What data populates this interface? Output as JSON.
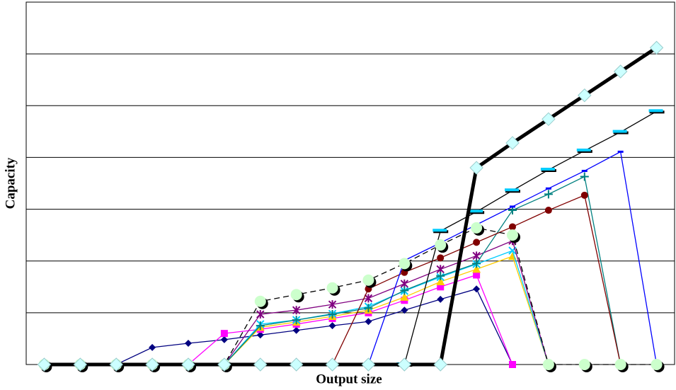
{
  "chart_data": {
    "type": "line",
    "x_label": "Output size",
    "y_label": "Capacity",
    "x": [
      1,
      2,
      3,
      4,
      5,
      6,
      7,
      8,
      9,
      10,
      11,
      12,
      13,
      14,
      15,
      16,
      17,
      18
    ],
    "xlim": [
      0.5,
      18.5
    ],
    "ylim": [
      0,
      7
    ],
    "yticks": [
      0,
      1,
      2,
      3,
      4,
      5,
      6,
      7
    ],
    "grid": true,
    "series": [
      {
        "color": "#000080",
        "marker": "diamond",
        "values": [
          null,
          null,
          0,
          0.33,
          0.41,
          0.48,
          0.57,
          0.66,
          0.75,
          0.83,
          1.05,
          1.26,
          1.46,
          0,
          null,
          null,
          null,
          null
        ]
      },
      {
        "color": "#ff00ff",
        "marker": "square",
        "values": [
          null,
          null,
          null,
          null,
          0,
          0.6,
          0.68,
          0.78,
          0.89,
          1.0,
          1.24,
          1.5,
          1.73,
          0,
          null,
          null,
          null,
          null
        ]
      },
      {
        "color": "#ffcc00",
        "marker": "triangle",
        "values": [
          null,
          null,
          null,
          null,
          null,
          0,
          0.72,
          0.82,
          0.93,
          1.05,
          1.3,
          1.6,
          1.84,
          2.09,
          0,
          null,
          null,
          null
        ]
      },
      {
        "color": "#00ccff",
        "marker": "x",
        "values": [
          null,
          null,
          null,
          null,
          null,
          0,
          0.78,
          0.86,
          0.98,
          1.12,
          1.42,
          1.69,
          1.94,
          2.2,
          0,
          null,
          null,
          null
        ]
      },
      {
        "color": "#800080",
        "marker": "star",
        "values": [
          null,
          null,
          null,
          null,
          null,
          0,
          0.97,
          1.05,
          1.16,
          1.28,
          1.56,
          1.84,
          2.1,
          2.39,
          0,
          null,
          null,
          null
        ]
      },
      {
        "color": "#008080",
        "marker": "plus",
        "values": [
          null,
          null,
          null,
          null,
          null,
          0,
          0.75,
          0.86,
          0.97,
          1.09,
          1.43,
          1.71,
          1.95,
          2.98,
          3.29,
          3.63,
          0,
          null
        ]
      },
      {
        "color": "#800000",
        "marker": "circle",
        "values": [
          null,
          null,
          null,
          null,
          null,
          null,
          null,
          null,
          0,
          1.46,
          1.78,
          2.06,
          2.36,
          2.66,
          2.98,
          3.27,
          0,
          null
        ]
      },
      {
        "color": "#0000ff",
        "marker": "dash",
        "values": [
          null,
          null,
          null,
          null,
          null,
          null,
          null,
          null,
          null,
          0,
          2.01,
          2.35,
          2.7,
          3.05,
          3.4,
          3.74,
          4.11,
          0
        ]
      },
      {
        "color": "#000000",
        "marker": "bar",
        "values": [
          null,
          null,
          null,
          null,
          null,
          null,
          null,
          null,
          null,
          null,
          0,
          2.58,
          2.95,
          3.36,
          3.76,
          4.13,
          4.49,
          4.89
        ]
      },
      {
        "color": "#000000",
        "marker": "bigcircle",
        "dash": "8,5",
        "values": [
          0,
          0,
          0,
          0,
          0,
          0,
          1.22,
          1.35,
          1.48,
          1.63,
          1.95,
          2.31,
          2.64,
          2.5,
          0,
          0,
          0,
          0
        ]
      },
      {
        "color": "#000000",
        "marker": "bigdiamond",
        "width": 5,
        "values": [
          0,
          0,
          0,
          0,
          0,
          0,
          0,
          0,
          0,
          0,
          0,
          0,
          3.8,
          4.28,
          4.74,
          5.2,
          5.66,
          6.12
        ]
      }
    ]
  }
}
